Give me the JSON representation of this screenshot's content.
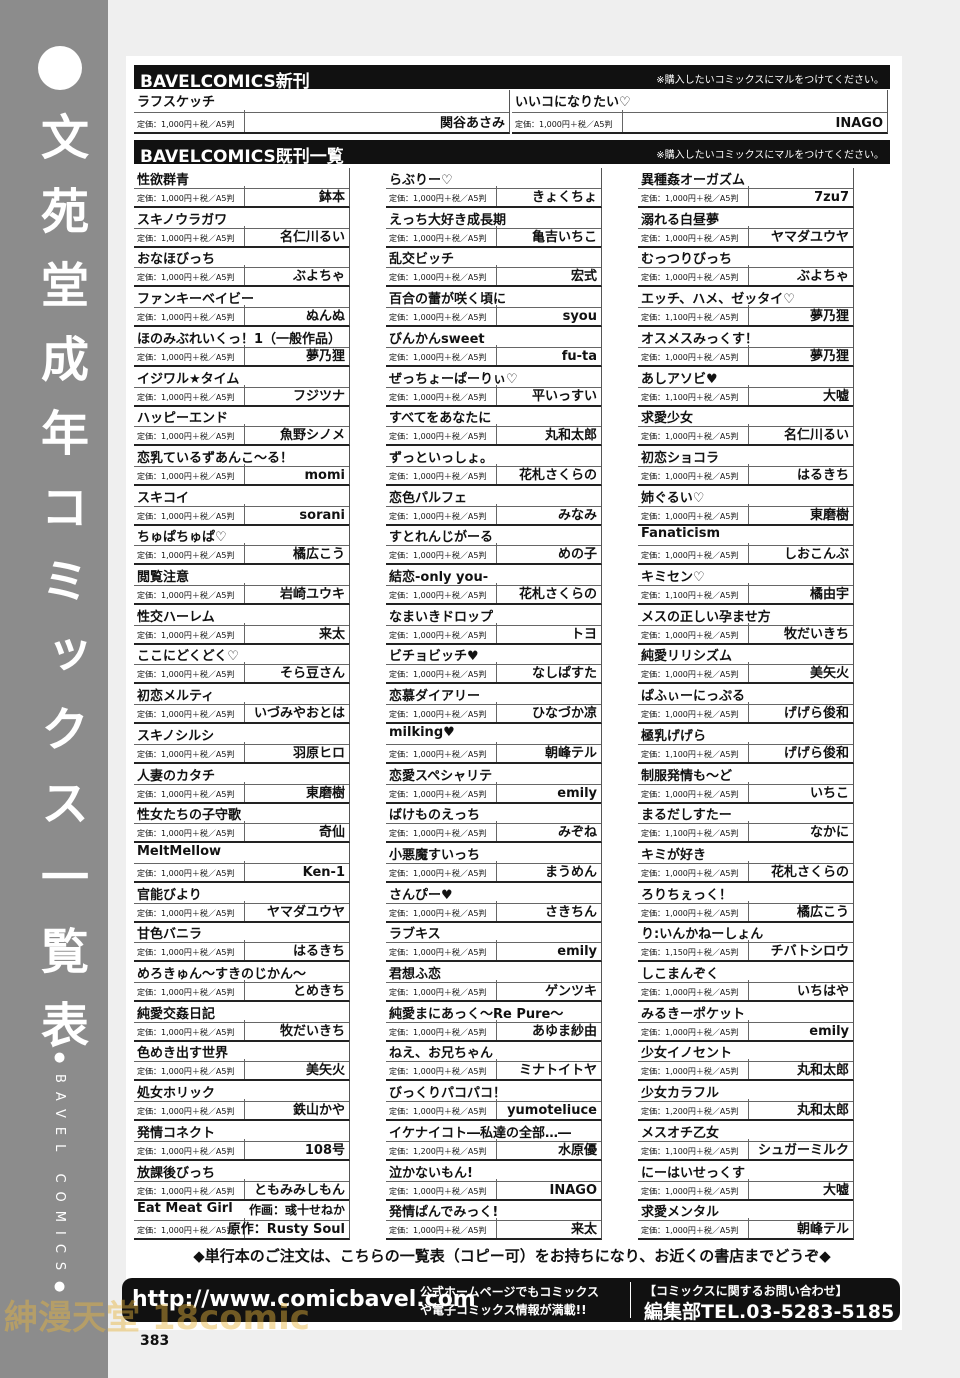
{
  "sidebar": {
    "title": "文苑堂成年コミックス一覧表",
    "brand": "●BAVEL COMICS●"
  },
  "new_releases": {
    "header": "BAVELCOMICS新刊",
    "note": "※購入したいコミックスにマルをつけてください。",
    "items": [
      [
        "ラフスケッチ",
        "定価：1,000円＋税／A5判",
        "関谷あさみ"
      ],
      [
        "いいコになりたい♡",
        "定価：1,000円＋税／A5判",
        "INAGO"
      ]
    ]
  },
  "backlist": {
    "header": "BAVELCOMICS既刊一覧",
    "note": "※購入したいコミックスにマルをつけてください。",
    "columns": [
      [
        [
          "性欲群青",
          "定価：1,000円＋税／A5判",
          "鉢本"
        ],
        [
          "スキノウラガワ",
          "定価：1,000円＋税／A5判",
          "名仁川るい"
        ],
        [
          "おなほびっち",
          "定価：1,000円＋税／A5判",
          "ぶよちゃ"
        ],
        [
          "ファンキーベイビー",
          "定価：1,000円＋税／A5判",
          "ぬんぬ"
        ],
        [
          "ほのみぶれいくっ！1（一般作品）",
          "定価：1,000円＋税／A5判",
          "夢乃狸"
        ],
        [
          "イジワル★タイム",
          "定価：1,000円＋税／A5判",
          "フジツナ"
        ],
        [
          "ハッピーエンド",
          "定価：1,000円＋税／A5判",
          "魚野シノメ"
        ],
        [
          "恋乳ているずあんこ～る！",
          "定価：1,000円＋税／A5判",
          "momi"
        ],
        [
          "スキコイ",
          "定価：1,000円＋税／A5判",
          "sorani"
        ],
        [
          "ちゅぱちゅぱ♡",
          "定価：1,000円＋税／A5判",
          "橘広こう"
        ],
        [
          "閲覧注意",
          "定価：1,000円＋税／A5判",
          "岩崎ユウキ"
        ],
        [
          "性交ハーレム",
          "定価：1,000円＋税／A5判",
          "来太"
        ],
        [
          "ここにどくどく♡",
          "定価：1,000円＋税／A5判",
          "そら豆さん"
        ],
        [
          "初恋メルティ",
          "定価：1,000円＋税／A5判",
          "いづみやおとは"
        ],
        [
          "スキノシルシ",
          "定価：1,000円＋税／A5判",
          "羽原ヒロ"
        ],
        [
          "人妻のカタチ",
          "定価：1,000円＋税／A5判",
          "東磨樹"
        ],
        [
          "性女たちの子守歌",
          "定価：1,000円＋税／A5判",
          "奇仙"
        ],
        [
          "MeltMellow",
          "定価：1,000円＋税／A5判",
          "Ken-1"
        ],
        [
          "官能びより",
          "定価：1,000円＋税／A5判",
          "ヤマダユウヤ"
        ],
        [
          "甘色バニラ",
          "定価：1,000円＋税／A5判",
          "はるきち"
        ],
        [
          "めろきゅん～すきのじかん～",
          "定価：1,000円＋税／A5判",
          "とめきち"
        ],
        [
          "純愛交姦日記",
          "定価：1,000円＋税／A5判",
          "牧だいきち"
        ],
        [
          "色めき出す世界",
          "定価：1,000円＋税／A5判",
          "美矢火"
        ],
        [
          "処女ホリック",
          "定価：1,000円＋税／A5判",
          "鉄山かや"
        ],
        [
          "発情コネクト",
          "定価：1,000円＋税／A5判",
          "108号"
        ],
        [
          "放課後びっち",
          "定価：1,000円＋税／A5判",
          "ともみみしもん"
        ],
        [
          "Eat Meat Girl",
          "定価：1,000円＋税／A5判",
          "原作：Rusty Soul",
          "作画：彧十せねか"
        ]
      ],
      [
        [
          "らぶりー♡",
          "定価：1,000円＋税／A5判",
          "きょくちょ"
        ],
        [
          "えっち大好き成長期",
          "定価：1,000円＋税／A5判",
          "亀吉いちこ"
        ],
        [
          "乱交ビッチ",
          "定価：1,000円＋税／A5判",
          "宏式"
        ],
        [
          "百合の蕾が咲く頃に",
          "定価：1,000円＋税／A5判",
          "syou"
        ],
        [
          "びんかんsweet",
          "定価：1,000円＋税／A5判",
          "fu-ta"
        ],
        [
          "ぜっちょーぱーりぃ♡",
          "定価：1,000円＋税／A5判",
          "平いっすい"
        ],
        [
          "すべてをあなたに",
          "定価：1,000円＋税／A5判",
          "丸和太郎"
        ],
        [
          "ずっといっしょ。",
          "定価：1,000円＋税／A5判",
          "花札さくらの"
        ],
        [
          "恋色パルフェ",
          "定価：1,000円＋税／A5判",
          "みなみ"
        ],
        [
          "すとれんじがーる",
          "定価：1,000円＋税／A5判",
          "めの子"
        ],
        [
          "結恋-only you-",
          "定価：1,000円＋税／A5判",
          "花札さくらの"
        ],
        [
          "なまいきドロップ",
          "定価：1,000円＋税／A5判",
          "トヨ"
        ],
        [
          "ビチョビッチ♥",
          "定価：1,000円＋税／A5判",
          "なしぱすた"
        ],
        [
          "恋慕ダイアリー",
          "定価：1,000円＋税／A5判",
          "ひなづか凉"
        ],
        [
          "milking♥",
          "定価：1,000円＋税／A5判",
          "朝峰テル"
        ],
        [
          "恋愛スペシャリテ",
          "定価：1,000円＋税／A5判",
          "emily"
        ],
        [
          "ばけものえっち",
          "定価：1,000円＋税／A5判",
          "みぞね"
        ],
        [
          "小悪魔すいっち",
          "定価：1,000円＋税／A5判",
          "まうめん"
        ],
        [
          "さんぴー♥",
          "定価：1,000円＋税／A5判",
          "さきちん"
        ],
        [
          "ラブキス",
          "定価：1,000円＋税／A5判",
          "emily"
        ],
        [
          "君想ふ恋",
          "定価：1,000円＋税／A5判",
          "ゲンツキ"
        ],
        [
          "純愛まにあっく～Re Pure～",
          "定価：1,000円＋税／A5判",
          "あゆま紗由"
        ],
        [
          "ねえ、お兄ちゃん",
          "定価：1,000円＋税／A5判",
          "ミナトイトヤ"
        ],
        [
          "びっくりパコパコ！",
          "定価：1,000円＋税／A5判",
          "yumoteliuce"
        ],
        [
          "イケナイコト―私達の全部…―",
          "定価：1,200円＋税／A5判",
          "水原優"
        ],
        [
          "泣かないもん!",
          "定価：1,000円＋税／A5判",
          "INAGO"
        ],
        [
          "発情ぱんでみっく!",
          "定価：1,000円＋税／A5判",
          "来太"
        ]
      ],
      [
        [
          "異種姦オーガズム",
          "定価：1,000円＋税／A5判",
          "7zu7"
        ],
        [
          "溺れる白昼夢",
          "定価：1,000円＋税／A5判",
          "ヤマダユウヤ"
        ],
        [
          "むっつりびっち",
          "定価：1,000円＋税／A5判",
          "ぶよちゃ"
        ],
        [
          "エッチ、ハメ、ゼッタイ♡",
          "定価：1,100円＋税／A5判",
          "夢乃狸"
        ],
        [
          "オスメスみっくす！",
          "定価：1,000円＋税／A5判",
          "夢乃狸"
        ],
        [
          "あしアソビ♥",
          "定価：1,100円＋税／A5判",
          "大嘘"
        ],
        [
          "求愛少女",
          "定価：1,000円＋税／A5判",
          "名仁川るい"
        ],
        [
          "初恋ショコラ",
          "定価：1,000円＋税／A5判",
          "はるきち"
        ],
        [
          "姉ぐるい♡",
          "定価：1,000円＋税／A5判",
          "東磨樹"
        ],
        [
          "Fanaticism",
          "定価：1,000円＋税／A5判",
          "しおこんぶ"
        ],
        [
          "キミセン♡",
          "定価：1,100円＋税／A5判",
          "橘由宇"
        ],
        [
          "メスの正しい孕ませ方",
          "定価：1,000円＋税／A5判",
          "牧だいきち"
        ],
        [
          "純愛リリシズム",
          "定価：1,000円＋税／A5判",
          "美矢火"
        ],
        [
          "ぱふぃーにっぷる",
          "定価：1,000円＋税／A5判",
          "げげら俊和"
        ],
        [
          "極乳げげら",
          "定価：1,100円＋税／A5判",
          "げげら俊和"
        ],
        [
          "制服発情も～ど",
          "定価：1,000円＋税／A5判",
          "いちこ"
        ],
        [
          "まるだしすたー",
          "定価：1,100円＋税／A5判",
          "なかに"
        ],
        [
          "キミが好き",
          "定価：1,000円＋税／A5判",
          "花札さくらの"
        ],
        [
          "ろりちぇっく！",
          "定価：1,000円＋税／A5判",
          "橘広こう"
        ],
        [
          "り:いんかねーしょん",
          "定価：1,150円＋税／A5判",
          "チバトシロウ"
        ],
        [
          "しこまんぞく",
          "定価：1,000円＋税／A5判",
          "いちはや"
        ],
        [
          "みるきーポケット",
          "定価：1,000円＋税／A5判",
          "emily"
        ],
        [
          "少女イノセント",
          "定価：1,000円＋税／A5判",
          "丸和太郎"
        ],
        [
          "少女カラフル",
          "定価：1,200円＋税／A5判",
          "丸和太郎"
        ],
        [
          "メスオチ乙女",
          "定価：1,100円＋税／A5判",
          "シュガーミルク"
        ],
        [
          "にーはいせっくす",
          "定価：1,000円＋税／A5判",
          "大嘘"
        ],
        [
          "求愛メンタル",
          "定価：1,000円＋税／A5判",
          "朝峰テル"
        ]
      ]
    ]
  },
  "footer": {
    "order_note": "◆単行本のご注文は、こちらの一覧表（コピー可）をお持ちになり、お近くの書店までどうぞ◆",
    "url": "http://www.comicbavel.com",
    "info_line1": "公式ホームページでもコミックス",
    "info_line2": "や電子コミックス情報が満載!!",
    "contact_title": "【コミックスに関するお問い合わせ】",
    "contact_tel": "編集部TEL.03-5283-5185",
    "page_number": "383",
    "watermark": "紳漫天堂 18comic"
  }
}
